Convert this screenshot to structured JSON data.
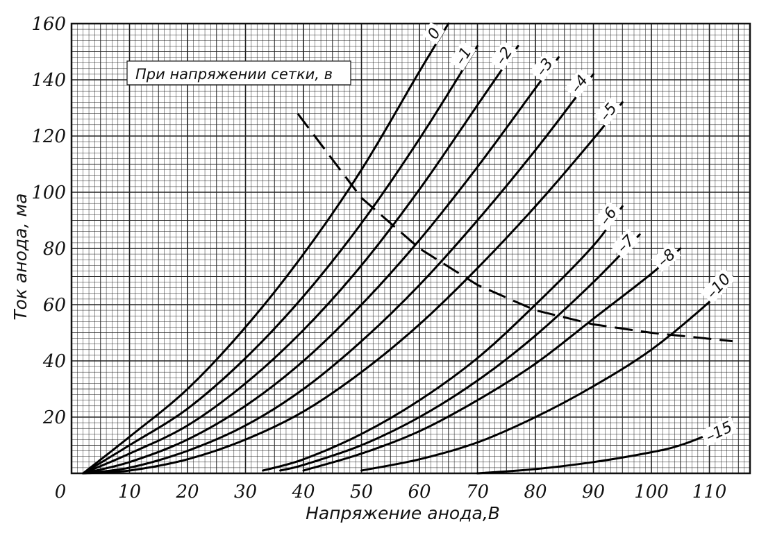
{
  "chart_data": {
    "type": "line",
    "xlabel": "Напряжение анода,В",
    "ylabel": "Ток анода, ма",
    "legend_title": "При напряжении сетки, в",
    "xlim": [
      0,
      117
    ],
    "ylim": [
      0,
      160
    ],
    "x_ticks": [
      0,
      10,
      20,
      30,
      40,
      50,
      60,
      70,
      80,
      90,
      100,
      110
    ],
    "y_ticks": [
      20,
      40,
      60,
      80,
      100,
      120,
      140,
      160
    ],
    "grid": true,
    "series": [
      {
        "name": "0",
        "x": [
          2,
          10,
          20,
          30,
          40,
          50,
          60,
          65
        ],
        "y": [
          0,
          13,
          30,
          52,
          78,
          108,
          143,
          160
        ]
      },
      {
        "name": "-1",
        "x": [
          2,
          10,
          20,
          30,
          40,
          50,
          60,
          70
        ],
        "y": [
          0,
          10,
          23,
          41,
          63,
          89,
          119,
          152
        ]
      },
      {
        "name": "-2",
        "x": [
          2,
          10,
          20,
          30,
          40,
          50,
          60,
          70,
          77
        ],
        "y": [
          0,
          7,
          17,
          32,
          51,
          74,
          101,
          131,
          152
        ]
      },
      {
        "name": "-3",
        "x": [
          2,
          10,
          20,
          30,
          40,
          50,
          60,
          70,
          80,
          84
        ],
        "y": [
          0,
          4,
          12,
          24,
          40,
          60,
          83,
          109,
          137,
          148
        ]
      },
      {
        "name": "-4",
        "x": [
          2,
          10,
          20,
          30,
          40,
          50,
          60,
          70,
          80,
          90
        ],
        "y": [
          0,
          2,
          8,
          17,
          30,
          47,
          67,
          90,
          115,
          142
        ]
      },
      {
        "name": "-5",
        "x": [
          2,
          10,
          20,
          30,
          40,
          50,
          60,
          70,
          80,
          90,
          95
        ],
        "y": [
          0,
          1,
          5,
          12,
          22,
          36,
          53,
          73,
          95,
          119,
          132
        ]
      },
      {
        "name": "-6",
        "x": [
          33,
          40,
          50,
          60,
          70,
          80,
          90,
          95
        ],
        "y": [
          1,
          5,
          14,
          26,
          41,
          60,
          81,
          95
        ]
      },
      {
        "name": "-7",
        "x": [
          36,
          40,
          50,
          60,
          70,
          80,
          90,
          98
        ],
        "y": [
          1,
          3,
          10,
          20,
          33,
          49,
          68,
          85
        ]
      },
      {
        "name": "-8",
        "x": [
          40,
          50,
          60,
          70,
          80,
          90,
          100,
          105
        ],
        "y": [
          1,
          7,
          15,
          26,
          39,
          55,
          71,
          80
        ]
      },
      {
        "name": "-10",
        "x": [
          50,
          60,
          70,
          80,
          90,
          100,
          110,
          114
        ],
        "y": [
          1,
          5,
          11,
          20,
          31,
          44,
          61,
          70
        ]
      },
      {
        "name": "-15",
        "x": [
          70,
          80,
          90,
          100,
          105,
          110,
          114
        ],
        "y": [
          0,
          1.5,
          4,
          7.5,
          10,
          14,
          18
        ]
      }
    ],
    "dissipation_line": {
      "x": [
        39,
        50,
        60,
        70,
        80,
        90,
        100,
        114
      ],
      "y": [
        128,
        98,
        80,
        67,
        58,
        53,
        50,
        47
      ]
    }
  }
}
